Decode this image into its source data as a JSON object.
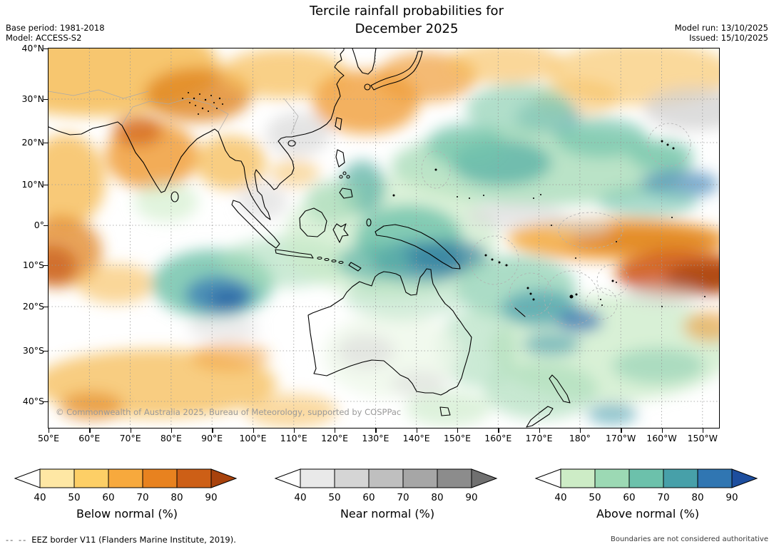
{
  "header": {
    "title_line1": "Tercile rainfall probabilities for",
    "title_line2": "December 2025",
    "base_period": "Base period: 1981-2018",
    "model": "Model: ACCESS-S2",
    "model_run": "Model run: 13/10/2025",
    "issued": "Issued: 15/10/2025"
  },
  "map": {
    "copyright": "© Commonwealth of Australia 2025, Bureau of Meteorology, supported by COSPPac",
    "lat_ticks": [
      "40°N",
      "30°N",
      "20°N",
      "10°N",
      "0°",
      "10°S",
      "20°S",
      "30°S",
      "40°S"
    ],
    "lon_ticks": [
      "50°E",
      "60°E",
      "70°E",
      "80°E",
      "90°E",
      "100°E",
      "110°E",
      "120°E",
      "130°E",
      "140°E",
      "150°E",
      "160°E",
      "170°E",
      "180°",
      "170°W",
      "160°W",
      "150°W"
    ]
  },
  "legends": [
    {
      "id": "below-normal",
      "title": "Below normal (%)",
      "ticks": [
        "40",
        "50",
        "60",
        "70",
        "80",
        "90"
      ],
      "under_color": "#ffffff",
      "box_colors": [
        "#fee7a4",
        "#fdcf66",
        "#f7a93d",
        "#e8821f",
        "#cd5f16"
      ],
      "over_color": "#a8420c"
    },
    {
      "id": "near-normal",
      "title": "Near normal (%)",
      "ticks": [
        "40",
        "50",
        "60",
        "70",
        "80",
        "90"
      ],
      "under_color": "#ffffff",
      "box_colors": [
        "#e9e9e9",
        "#d5d5d5",
        "#bfbfbf",
        "#a6a6a6",
        "#8c8c8c"
      ],
      "over_color": "#707070"
    },
    {
      "id": "above-normal",
      "title": "Above normal (%)",
      "ticks": [
        "40",
        "50",
        "60",
        "70",
        "80",
        "90"
      ],
      "under_color": "#ffffff",
      "box_colors": [
        "#cdecc6",
        "#9cd9b4",
        "#6cc1ab",
        "#47a0a9",
        "#3076b2"
      ],
      "over_color": "#1d4e9e"
    }
  ],
  "footer": {
    "eez_dashes": "--  --",
    "eez_text": "EEZ border V11 (Flanders Marine Institute, 2019).",
    "disclaimer": "Boundaries are not considered authoritative"
  }
}
